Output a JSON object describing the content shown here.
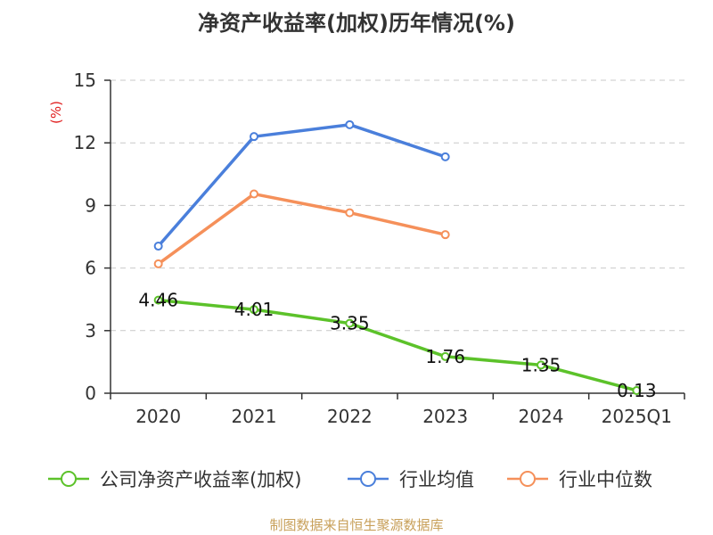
{
  "title": "净资产收益率(加权)历年情况(%)",
  "source": "制图数据来自恒生聚源数据库",
  "colors": {
    "company": "#5cc22a",
    "industry_avg": "#4a7fdb",
    "industry_median": "#f5905a",
    "unit": "#e01e1e"
  },
  "chart_data": {
    "type": "line",
    "title": "净资产收益率(加权)历年情况(%)",
    "ylabel": "(%)",
    "xlabel": "",
    "ylim": [
      0,
      15
    ],
    "yticks": [
      0,
      3,
      6,
      9,
      12,
      15
    ],
    "categories": [
      "2020",
      "2021",
      "2022",
      "2023",
      "2024",
      "2025Q1"
    ],
    "grid": true,
    "legend_position": "bottom",
    "series": [
      {
        "name": "公司净资产收益率(加权)",
        "color_key": "company",
        "show_labels": true,
        "values": [
          4.46,
          4.01,
          3.35,
          1.76,
          1.35,
          0.13
        ],
        "labels": [
          "4.46",
          "4.01",
          "3.35",
          "1.76",
          "1.35",
          "0.13"
        ]
      },
      {
        "name": "行业均值",
        "color_key": "industry_avg",
        "show_labels": false,
        "values": [
          7.05,
          12.3,
          12.87,
          11.33,
          null,
          null
        ]
      },
      {
        "name": "行业中位数",
        "color_key": "industry_median",
        "show_labels": false,
        "values": [
          6.2,
          9.55,
          8.65,
          7.6,
          null,
          null
        ]
      }
    ]
  }
}
